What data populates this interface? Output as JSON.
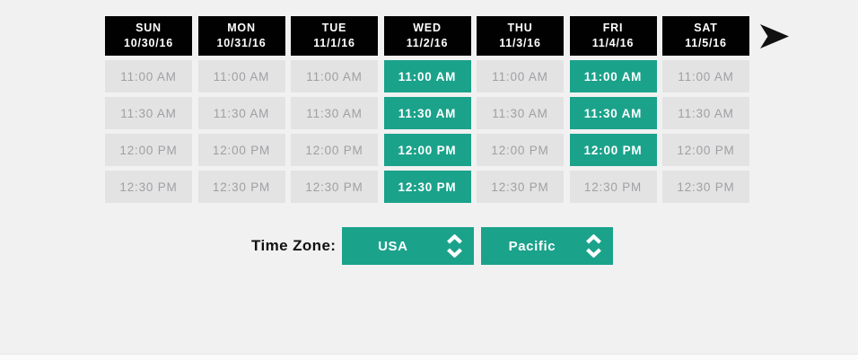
{
  "colors": {
    "accent_teal": "#1ba28b",
    "header_black": "#010101",
    "slot_gray_bg": "#e3e3e4",
    "slot_gray_text": "#a0a0a3",
    "page_background": "#f1f1f2"
  },
  "week": {
    "days": [
      {
        "name": "SUN",
        "date": "10/30/16"
      },
      {
        "name": "MON",
        "date": "10/31/16"
      },
      {
        "name": "TUE",
        "date": "11/1/16"
      },
      {
        "name": "WED",
        "date": "11/2/16"
      },
      {
        "name": "THU",
        "date": "11/3/16"
      },
      {
        "name": "FRI",
        "date": "11/4/16"
      },
      {
        "name": "SAT",
        "date": "11/5/16"
      }
    ]
  },
  "times": [
    "11:00 AM",
    "11:30 AM",
    "12:00 PM",
    "12:30 PM"
  ],
  "selected_slots": [
    [
      3,
      0
    ],
    [
      3,
      1
    ],
    [
      3,
      2
    ],
    [
      3,
      3
    ],
    [
      5,
      0
    ],
    [
      5,
      1
    ],
    [
      5,
      2
    ]
  ],
  "next_arrow_label": "next-week",
  "timezone": {
    "label": "Time Zone:",
    "country_value": "USA",
    "region_value": "Pacific"
  }
}
